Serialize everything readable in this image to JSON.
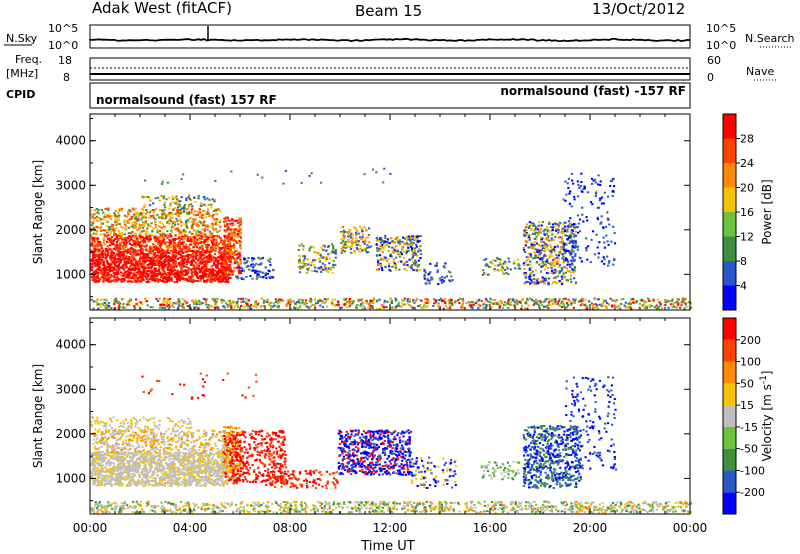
{
  "header": {
    "station": "Adak West (fitACF)",
    "beam": "Beam 15",
    "date": "13/Oct/2012"
  },
  "noise_panel": {
    "left_label": "N.Sky",
    "right_label": "N.Search",
    "left_ticks": [
      "10^5",
      "10^0"
    ],
    "right_ticks": [
      "10^5",
      "10^0"
    ]
  },
  "freq_panel": {
    "left_label_1": "Freq.",
    "left_label_2": "[MHz]",
    "left_ticks": [
      "18",
      "8"
    ],
    "right_label": "Nave",
    "right_ticks": [
      "60",
      "0"
    ]
  },
  "cpid": {
    "label": "CPID",
    "left_text": "normalsound (fast) 157 RF",
    "right_text": "normalsound (fast) -157 RF"
  },
  "chart_data": [
    {
      "type": "heatmap",
      "name": "power",
      "xlabel": "",
      "ylabel": "Slant Range [km]",
      "x_ticks": [
        "00:00",
        "04:00",
        "08:00",
        "12:00",
        "16:00",
        "20:00",
        "00:00"
      ],
      "y_ticks": [
        1000,
        2000,
        3000,
        4000
      ],
      "ylim": [
        200,
        4600
      ],
      "xlim_hours": [
        0,
        24
      ],
      "colorbar": {
        "label": "Power [dB]",
        "ticks": [
          28,
          24,
          20,
          16,
          12,
          8,
          4
        ],
        "colors": [
          "#0000ff",
          "#2a58c8",
          "#3f8f3f",
          "#6cc23c",
          "#f5c400",
          "#ff8c00",
          "#ff4400",
          "#ff0000"
        ]
      }
    },
    {
      "type": "heatmap",
      "name": "velocity",
      "xlabel": "Time UT",
      "ylabel": "Slant Range [km]",
      "x_ticks": [
        "00:00",
        "04:00",
        "08:00",
        "12:00",
        "16:00",
        "20:00",
        "00:00"
      ],
      "y_ticks": [
        1000,
        2000,
        3000,
        4000
      ],
      "ylim": [
        200,
        4600
      ],
      "xlim_hours": [
        0,
        24
      ],
      "colorbar": {
        "label": "Velocity [m s^-1]",
        "ticks": [
          200,
          100,
          50,
          15,
          -15,
          -50,
          -100,
          -200
        ],
        "colors": [
          "#0000ff",
          "#2a58c8",
          "#3f8f3f",
          "#6cc23c",
          "#bebebe",
          "#f5c400",
          "#ff8c00",
          "#ff4400",
          "#ff0000"
        ]
      }
    }
  ]
}
